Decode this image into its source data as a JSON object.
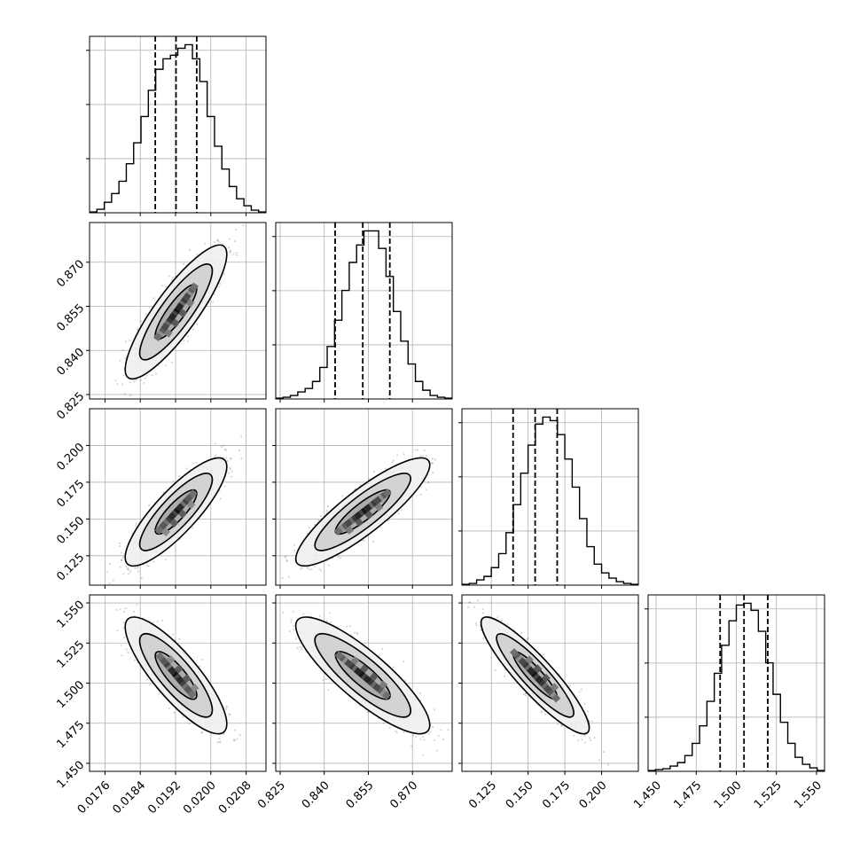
{
  "chart_data": {
    "type": "corner",
    "grid": true,
    "params": [
      {
        "ticks": [
          "0.0176",
          "0.0184",
          "0.0192",
          "0.0200",
          "0.0208"
        ],
        "tick_values": [
          0.0176,
          0.0184,
          0.0192,
          0.02,
          0.0208
        ],
        "range": [
          0.01725,
          0.02125
        ],
        "quantiles": [
          0.01874,
          0.01921,
          0.01968
        ]
      },
      {
        "ticks": [
          "0.825",
          "0.840",
          "0.855",
          "0.870"
        ],
        "tick_values": [
          0.825,
          0.84,
          0.855,
          0.87
        ],
        "range": [
          0.8235,
          0.8835
        ],
        "quantiles": [
          0.8437,
          0.8531,
          0.8623
        ]
      },
      {
        "ticks": [
          "0.125",
          "0.150",
          "0.175",
          "0.200"
        ],
        "tick_values": [
          0.125,
          0.15,
          0.175,
          0.2
        ],
        "range": [
          0.105,
          0.225
        ],
        "quantiles": [
          0.1398,
          0.1548,
          0.1698
        ]
      },
      {
        "ticks": [
          "1.450",
          "1.475",
          "1.500",
          "1.525",
          "1.550"
        ],
        "tick_values": [
          1.45,
          1.475,
          1.5,
          1.525,
          1.55
        ],
        "range": [
          1.445,
          1.555
        ],
        "quantiles": [
          1.4899,
          1.5048,
          1.5196
        ]
      }
    ],
    "histograms": [
      [
        0.5,
        2,
        6,
        11,
        18,
        28,
        40,
        55,
        70,
        82,
        88,
        90,
        94,
        96,
        88,
        75,
        55,
        38,
        25,
        15,
        8,
        4,
        1.5,
        0.5
      ],
      [
        0.5,
        1,
        2,
        4,
        6,
        10,
        18,
        30,
        45,
        62,
        78,
        88,
        96,
        96,
        86,
        70,
        50,
        33,
        20,
        10,
        5,
        2,
        1,
        0.5
      ],
      [
        0.5,
        1,
        3,
        5,
        10,
        18,
        30,
        46,
        64,
        80,
        92,
        96,
        94,
        86,
        72,
        56,
        38,
        22,
        12,
        7,
        4,
        2,
        1,
        0.5
      ],
      [
        0.5,
        1,
        1.5,
        3,
        5,
        9,
        16,
        26,
        40,
        56,
        72,
        86,
        95,
        96,
        92,
        80,
        62,
        44,
        28,
        16,
        8,
        4,
        2,
        0.5
      ]
    ],
    "correlations": [
      [
        0,
        1,
        0.86
      ],
      [
        0,
        2,
        0.84
      ],
      [
        1,
        2,
        0.87
      ],
      [
        0,
        3,
        -0.83
      ],
      [
        1,
        3,
        -0.85
      ],
      [
        2,
        3,
        -0.9
      ]
    ]
  }
}
